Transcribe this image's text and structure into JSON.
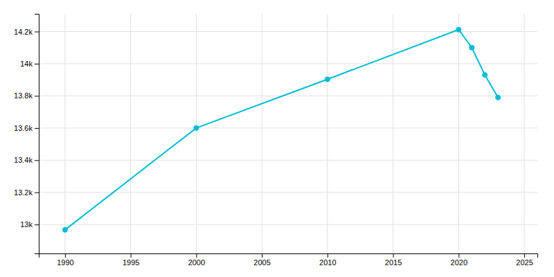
{
  "chart_data": {
    "type": "line",
    "x": [
      1990,
      2000,
      2010,
      2020,
      2021,
      2022,
      2023
    ],
    "values": [
      12967,
      13600,
      13903,
      14212,
      14100,
      13930,
      13790
    ],
    "color": "#00bcd4",
    "marker": "circle",
    "xlim": [
      1988,
      2026
    ],
    "ylim": [
      12820,
      14310
    ],
    "xticks": [
      1990,
      1995,
      2000,
      2005,
      2010,
      2015,
      2020,
      2025
    ],
    "yticks": [
      {
        "value": 13000,
        "label": "13k"
      },
      {
        "value": 13200,
        "label": "13.2k"
      },
      {
        "value": 13400,
        "label": "13.4k"
      },
      {
        "value": 13600,
        "label": "13.6k"
      },
      {
        "value": 13800,
        "label": "13.8k"
      },
      {
        "value": 14000,
        "label": "14k"
      },
      {
        "value": 14200,
        "label": "14.2k"
      }
    ],
    "grid": true
  }
}
